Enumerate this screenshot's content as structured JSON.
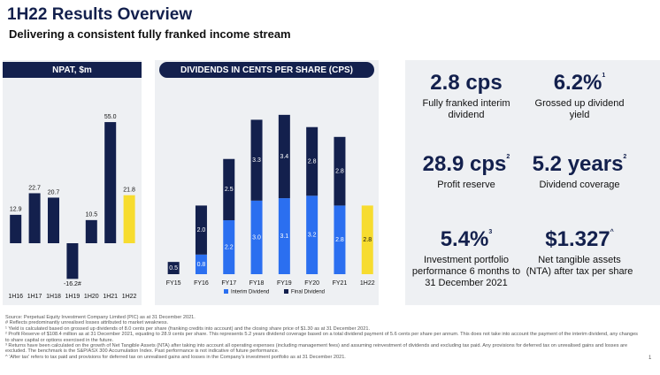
{
  "header": {
    "title": "1H22 Results Overview",
    "subtitle": "Delivering a consistent fully franked income stream"
  },
  "chart_data": [
    {
      "type": "bar",
      "title": "NPAT, $m",
      "categories": [
        "1H16",
        "1H17",
        "1H18",
        "1H19",
        "1H20",
        "1H21",
        "1H22"
      ],
      "values": [
        12.9,
        22.7,
        20.7,
        -16.2,
        10.5,
        55.0,
        21.8
      ],
      "value_labels": [
        "12.9",
        "22.7",
        "20.7",
        "-16.2#",
        "10.5",
        "55.0",
        "21.8"
      ],
      "colors": [
        "#13204d",
        "#13204d",
        "#13204d",
        "#13204d",
        "#13204d",
        "#13204d",
        "#f7dc2f"
      ],
      "ylim": [
        -20,
        60
      ]
    },
    {
      "type": "stacked_bar",
      "title": "DIVIDENDS IN CENTS PER SHARE (CPS)",
      "categories": [
        "FY15",
        "FY16",
        "FY17",
        "FY18",
        "FY19",
        "FY20",
        "FY21",
        "1H22"
      ],
      "series": [
        {
          "name": "Interim Dividend",
          "color": "#2b6ff0",
          "colors": [
            "#2b6ff0",
            "#2b6ff0",
            "#2b6ff0",
            "#2b6ff0",
            "#2b6ff0",
            "#2b6ff0",
            "#2b6ff0",
            "#f7dc2f"
          ],
          "values": [
            null,
            0.8,
            2.2,
            3.0,
            3.1,
            3.2,
            2.8,
            2.8
          ],
          "value_labels": [
            null,
            "0.8",
            "2.2",
            "3.0",
            "3.1",
            "3.2",
            "2.8",
            "2.8"
          ]
        },
        {
          "name": "Final Dividend",
          "color": "#13204d",
          "values": [
            0.5,
            2.0,
            2.5,
            3.3,
            3.4,
            2.8,
            2.8,
            null
          ],
          "value_labels": [
            "0.5",
            "2.0",
            "2.5",
            "3.3",
            "3.4",
            "2.8",
            "2.8",
            null
          ]
        }
      ],
      "ylim": [
        0,
        7
      ],
      "legend": "bottom"
    }
  ],
  "kpis": [
    {
      "value": "2.8 cps",
      "label": "Fully franked interim dividend"
    },
    {
      "value": "6.2%",
      "mark": "1",
      "label": "Grossed up dividend yield"
    },
    {
      "value": "28.9 cps",
      "mark": "2",
      "label": "Profit reserve"
    },
    {
      "value": "5.2 years",
      "mark": "2",
      "label": "Dividend coverage"
    },
    {
      "value": "5.4%",
      "mark": "3",
      "label": "Investment portfolio performance 6 months to 31 December 2021"
    },
    {
      "value": "$1.327",
      "mark": "^",
      "label": "Net tangible assets (NTA) after tax per share"
    }
  ],
  "footnotes": [
    "Source: Perpetual Equity Investment Company Limited (PIC) as at 31 December 2021.",
    "# Reflects predominantly unrealised losses attributed to market weakness.",
    "¹ Yield is calculated based on grossed up dividends of 8.0 cents per share (franking credits into account) and the closing share price of $1.30 as at 31 December 2021.",
    "² Profit Reserve of $108.4 million as at 31 December 2021, equating to 28.9 cents per share. This represents 5.2 years dividend coverage based on a total dividend payment of 5.6 cents per share per annum. This does not take into account the payment of the interim dividend, any changes to share capital or options exercised in the future.",
    "³ Returns have been calculated on the growth of Net Tangible Assets (NTA) after taking into account all operating expenses (including management fees) and assuming reinvestment of dividends and excluding tax paid. Any provisions for deferred tax on unrealised gains and losses are excluded. The benchmark is the S&P/ASX 300 Accumulation Index. Past performance is not indicative of future performance.",
    "^ 'After tax' refers to tax paid and provisions for deferred tax on unrealised gains and losses in the Company's investment portfolio as at 31 December 2021."
  ],
  "page_number": "1"
}
